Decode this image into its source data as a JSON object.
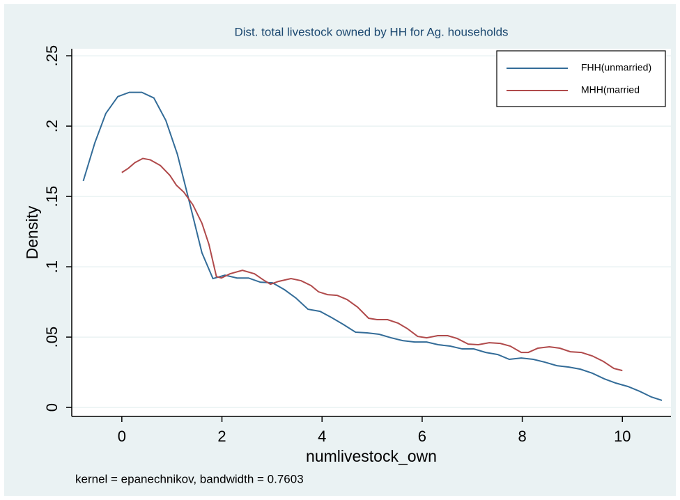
{
  "chart_data": {
    "type": "line",
    "title": "Dist. total livestock owned by HH for Ag. households",
    "xlabel": "numlivestock_own",
    "ylabel": "Density",
    "note": "kernel = epanechnikov, bandwidth = 0.7603",
    "xlim": [
      -1,
      10.97
    ],
    "ylim": [
      -0.0064,
      0.255
    ],
    "xticks": [
      0,
      2,
      4,
      6,
      8,
      10
    ],
    "yticks": [
      0,
      {
        "value": 0.05,
        "label": ".05"
      },
      {
        "value": 0.1,
        "label": ".1"
      },
      {
        "value": 0.15,
        "label": ".15"
      },
      {
        "value": 0.2,
        "label": ".2"
      },
      {
        "value": 0.25,
        "label": ".25"
      }
    ],
    "grid": true,
    "legend": "top-right",
    "series": [
      {
        "name": "FHH(unmarried)",
        "color": "#336c98",
        "x": [
          -0.77,
          -0.54,
          -0.32,
          -0.08,
          0.15,
          0.4,
          0.64,
          0.88,
          1.11,
          1.35,
          1.6,
          1.82,
          2.06,
          2.3,
          2.53,
          2.77,
          3.01,
          3.25,
          3.48,
          3.72,
          3.96,
          4.19,
          4.43,
          4.67,
          4.9,
          5.14,
          5.38,
          5.61,
          5.85,
          6.09,
          6.32,
          6.56,
          6.8,
          7.03,
          7.27,
          7.51,
          7.74,
          7.98,
          8.22,
          8.45,
          8.69,
          8.93,
          9.16,
          9.4,
          9.64,
          9.87,
          10.11,
          10.35,
          10.58,
          10.79
        ],
        "values": [
          0.161,
          0.188,
          0.209,
          0.221,
          0.224,
          0.224,
          0.22,
          0.204,
          0.18,
          0.146,
          0.11,
          0.0916,
          0.094,
          0.092,
          0.092,
          0.089,
          0.0886,
          0.0837,
          0.0777,
          0.0698,
          0.0683,
          0.0639,
          0.0589,
          0.0535,
          0.053,
          0.052,
          0.0495,
          0.0475,
          0.0465,
          0.0465,
          0.0446,
          0.0436,
          0.0416,
          0.0416,
          0.0391,
          0.0376,
          0.0342,
          0.0351,
          0.0342,
          0.0322,
          0.0297,
          0.0287,
          0.0272,
          0.0243,
          0.0203,
          0.0173,
          0.0149,
          0.0114,
          0.0074,
          0.005
        ]
      },
      {
        "name": "MHH(married",
        "color": "#b04a4b",
        "x": [
          0,
          0.13,
          0.26,
          0.42,
          0.57,
          0.77,
          0.96,
          1.09,
          1.24,
          1.42,
          1.6,
          1.74,
          1.89,
          1.99,
          2.16,
          2.41,
          2.65,
          2.83,
          2.97,
          3.13,
          3.38,
          3.58,
          3.78,
          3.93,
          4.11,
          4.3,
          4.5,
          4.71,
          4.93,
          5.1,
          5.31,
          5.52,
          5.71,
          5.91,
          6.09,
          6.31,
          6.51,
          6.7,
          6.92,
          7.12,
          7.34,
          7.56,
          7.76,
          7.98,
          8.12,
          8.31,
          8.54,
          8.75,
          8.96,
          9.18,
          9.4,
          9.62,
          9.83,
          10.0
        ],
        "values": [
          0.167,
          0.17,
          0.174,
          0.177,
          0.176,
          0.172,
          0.165,
          0.158,
          0.153,
          0.144,
          0.131,
          0.116,
          0.093,
          0.092,
          0.095,
          0.0975,
          0.095,
          0.0906,
          0.0876,
          0.0896,
          0.0916,
          0.0901,
          0.0866,
          0.0822,
          0.0802,
          0.0797,
          0.0767,
          0.0713,
          0.0634,
          0.0624,
          0.0624,
          0.0599,
          0.0559,
          0.0505,
          0.0495,
          0.051,
          0.051,
          0.049,
          0.045,
          0.0446,
          0.046,
          0.0455,
          0.0436,
          0.0391,
          0.0391,
          0.0421,
          0.0431,
          0.0421,
          0.0396,
          0.0391,
          0.0366,
          0.0327,
          0.0277,
          0.0262
        ]
      }
    ]
  }
}
